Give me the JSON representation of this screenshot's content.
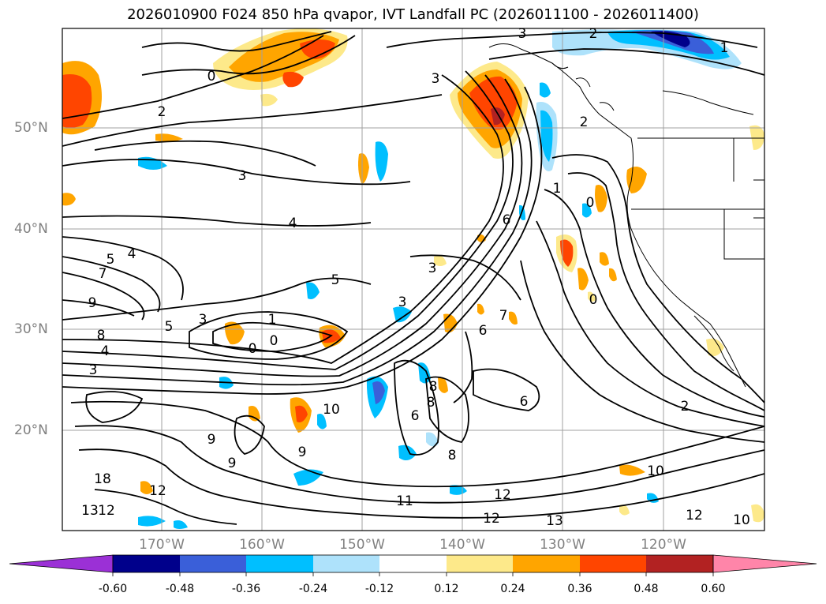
{
  "title": "2026010900 F024 850 hPa qvapor, IVT Landfall PC (2026011100 - 2026011400)",
  "axes": {
    "lat_labels": [
      "50°N",
      "40°N",
      "30°N",
      "20°N"
    ],
    "lon_labels": [
      "170°W",
      "160°W",
      "150°W",
      "140°W",
      "130°W",
      "120°W"
    ]
  },
  "colorbar": {
    "labels": [
      "-0.60",
      "-0.48",
      "-0.36",
      "-0.24",
      "-0.12",
      "0.12",
      "0.24",
      "0.36",
      "0.48",
      "0.60"
    ],
    "colors": [
      "#9b30d6",
      "#00008b",
      "#3a5fd9",
      "#00bfff",
      "#aee2fb",
      "#ffffff",
      "#fde98a",
      "#ffa500",
      "#ff4500",
      "#b22222",
      "#ff85a9"
    ],
    "extend": "both"
  },
  "contour_labels": [
    "3",
    "2",
    "0",
    "2",
    "1",
    "3",
    "2",
    "3",
    "4",
    "5",
    "4",
    "7",
    "9",
    "8",
    "4",
    "3",
    "5",
    "3",
    "1",
    "0",
    "3",
    "6",
    "6",
    "10",
    "6",
    "8",
    "8",
    "9",
    "9",
    "8",
    "18",
    "12",
    "13",
    "12",
    "11",
    "12",
    "12",
    "13",
    "10",
    "9",
    "10",
    "2",
    "7",
    "6",
    "5",
    "3",
    "1",
    "0",
    "0",
    "0",
    "12"
  ],
  "colors": {
    "contour": "#000000",
    "grid": "#a0a0a0",
    "coast": "#000000",
    "axis_label": "#808080"
  }
}
